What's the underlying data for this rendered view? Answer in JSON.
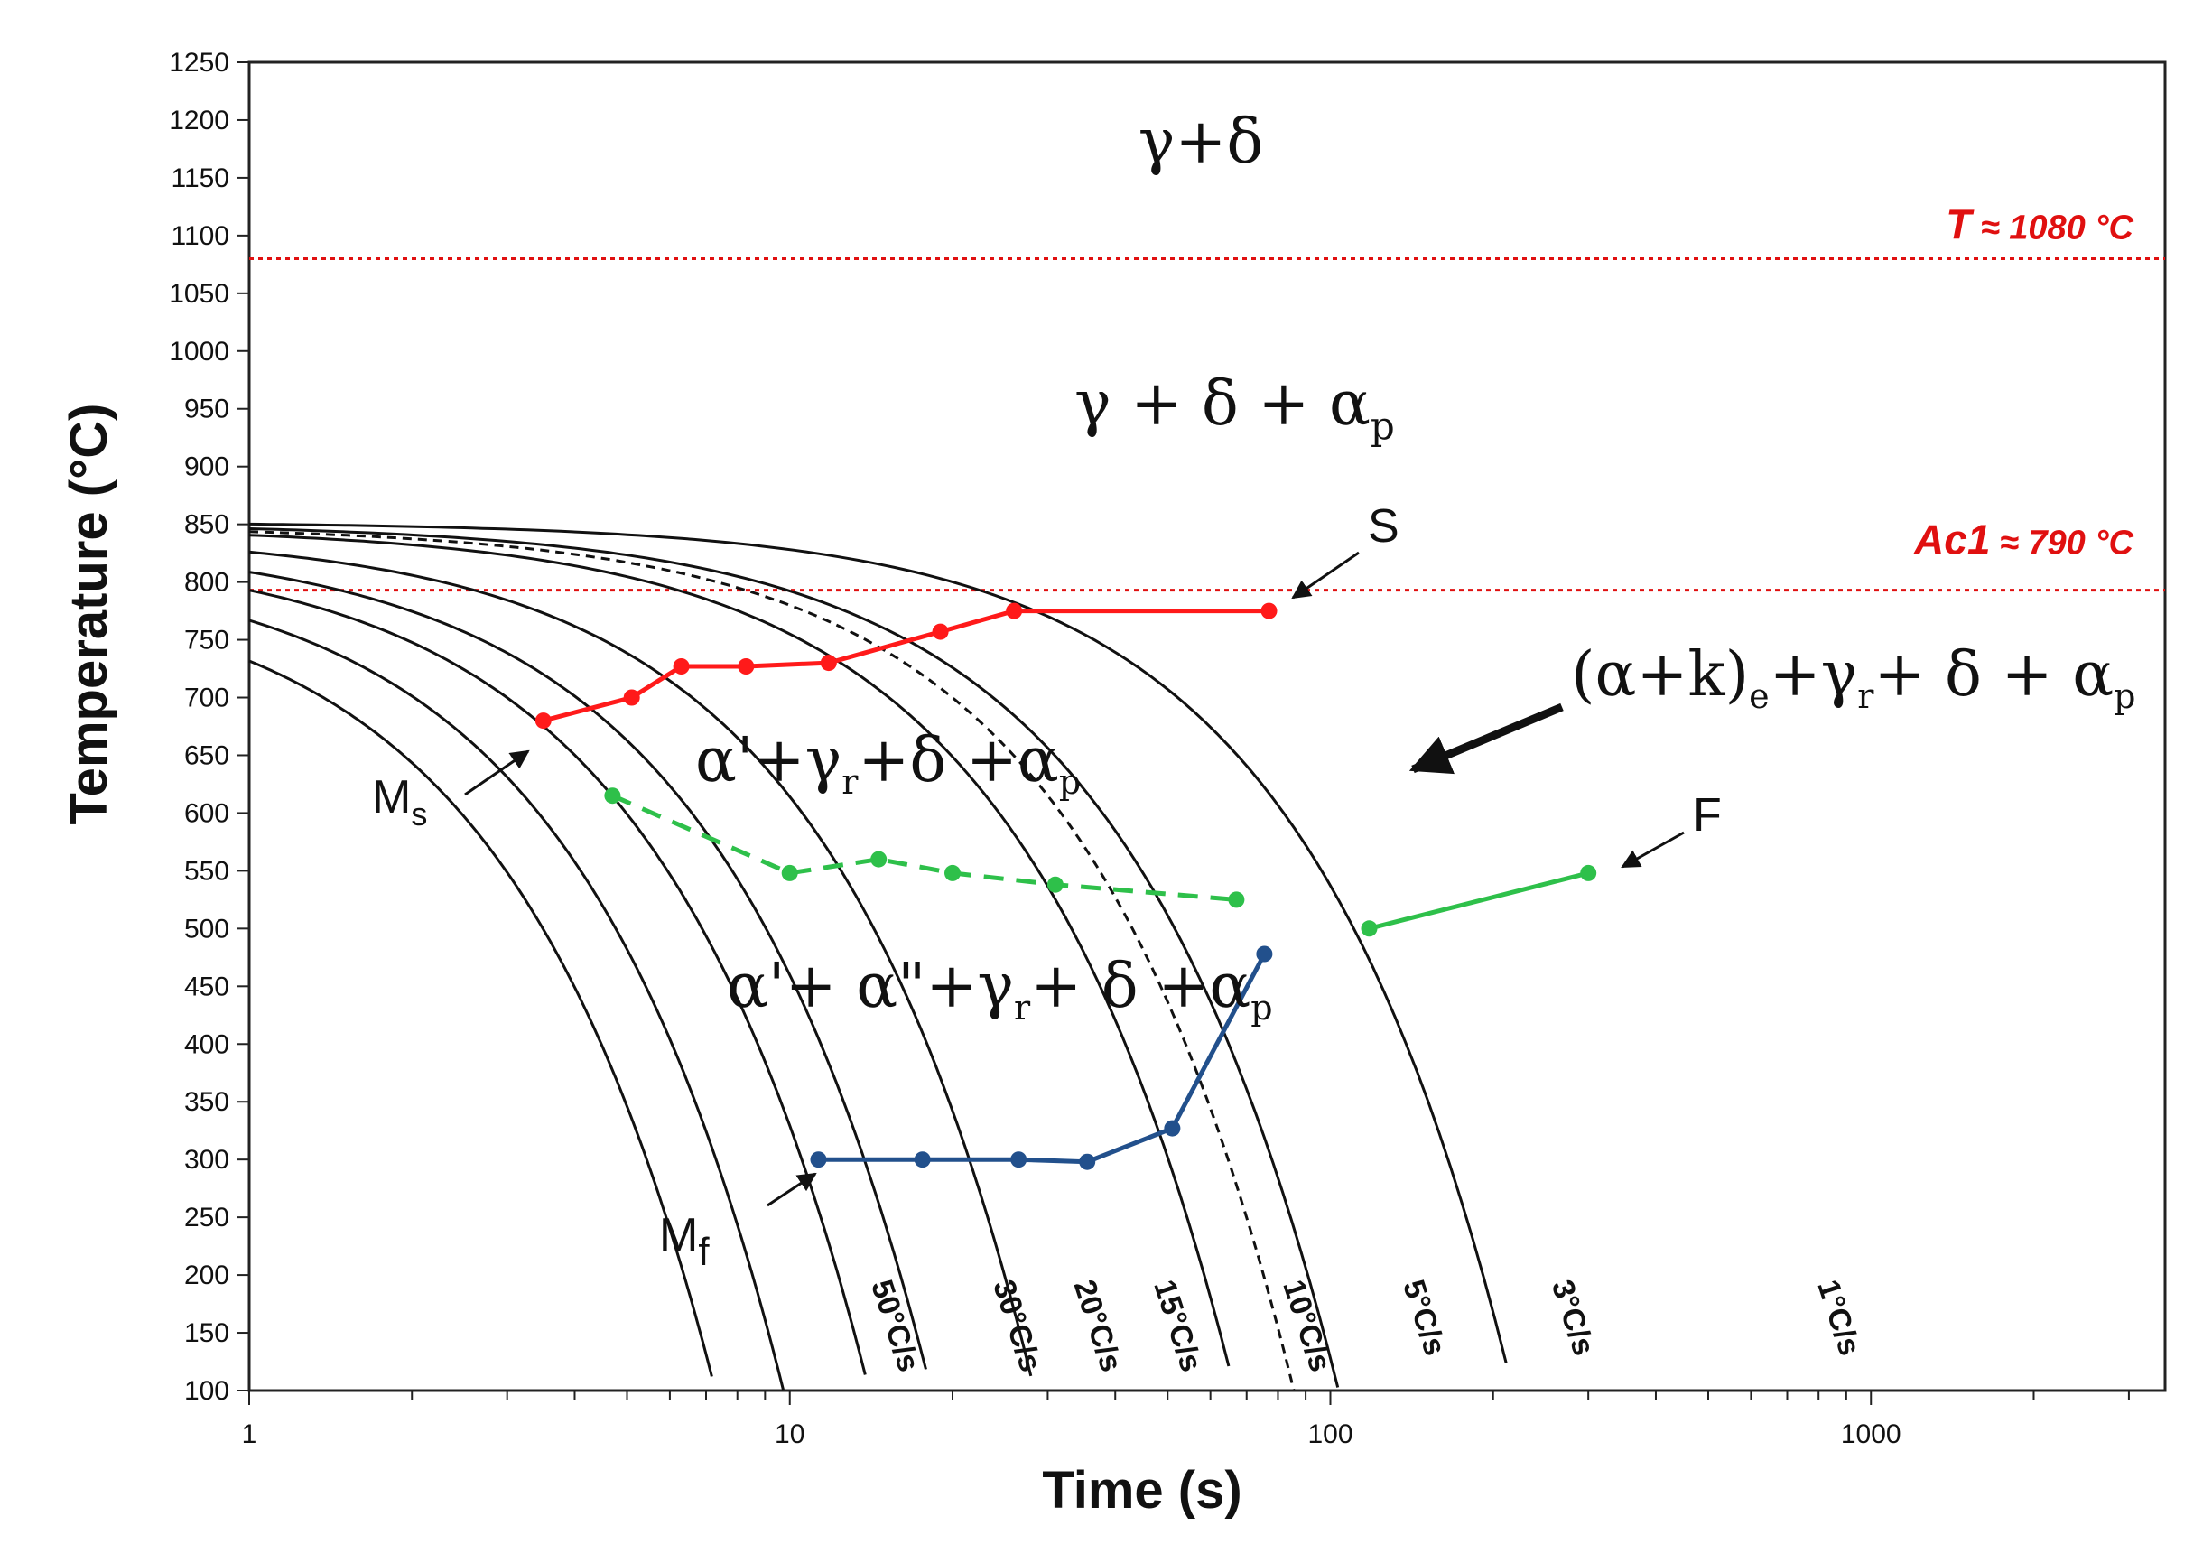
{
  "chart_data": {
    "type": "line",
    "title": "",
    "xlabel": "Time (s)",
    "ylabel": "Temperature (°C)",
    "x_scale": "log",
    "xlim": [
      1,
      3500
    ],
    "ylim": [
      100,
      1250
    ],
    "x_ticks": [
      "1",
      "10",
      "100",
      "1000"
    ],
    "y_ticks": [
      "100",
      "150",
      "200",
      "250",
      "300",
      "350",
      "400",
      "450",
      "500",
      "550",
      "600",
      "650",
      "700",
      "750",
      "800",
      "850",
      "900",
      "950",
      "1000",
      "1050",
      "1100",
      "1150",
      "1200",
      "1250"
    ],
    "reference_lines": [
      {
        "name": "T",
        "label_main": "T",
        "label_rest": " ≈ 1080 °C",
        "value": 1080,
        "color": "#e01010"
      },
      {
        "name": "Ac1",
        "label_main": "Ac1",
        "label_rest": "  ≈ 790 °C",
        "value": 793,
        "color": "#e01010"
      }
    ],
    "cooling_curves": [
      {
        "name": "50°C/s",
        "label": "50°C/s",
        "t0": 1,
        "T0": 805,
        "q": 1.31,
        "k": 1.14,
        "t_end": 13.5,
        "dashed": false
      },
      {
        "name": "30°C/s",
        "label": "30°C/s",
        "t0": 1,
        "T0": 822,
        "q": 1.74,
        "k": 1.13,
        "t_end": 22.7,
        "dashed": false
      },
      {
        "name": "20°C/s",
        "label": "20°C/s",
        "t0": 1,
        "T0": 832,
        "q": 2.46,
        "k": 1.11,
        "t_end": 32,
        "dashed": false
      },
      {
        "name": "15°C/s",
        "label": "15°C/s",
        "t0": 1,
        "T0": 838,
        "q": 3.27,
        "k": 1.11,
        "t_end": 45,
        "dashed": false
      },
      {
        "name": "10°C/s",
        "label": "10°C/s",
        "t0": 1,
        "T0": 843,
        "q": 5.66,
        "k": 1.13,
        "t_end": 78,
        "dashed": false
      },
      {
        "name": "5°C/s",
        "label": "5°C/s",
        "t0": 1,
        "T0": 848,
        "q": 13.0,
        "k": 1.1,
        "t_end": 130,
        "dashed": false
      },
      {
        "name": "4°C/s",
        "label": "",
        "t0": 1,
        "T0": 849,
        "q": 17.9,
        "k": 1.11,
        "t_end": 205,
        "dashed": true
      },
      {
        "name": "3°C/s",
        "label": "3°C/s",
        "t0": 1,
        "T0": 851,
        "q": 20.1,
        "k": 1.09,
        "t_end": 245,
        "dashed": false
      },
      {
        "name": "1°C/s",
        "label": "1°C/s",
        "t0": 1,
        "T0": 852,
        "q": 53.0,
        "k": 1.12,
        "t_end": 760,
        "dashed": false
      }
    ],
    "series": [
      {
        "name": "Ms",
        "color": "#ff1a1a",
        "style": "solid",
        "x": [
          3.5,
          5.1,
          6.3,
          8.3,
          11.8,
          19,
          26,
          77
        ],
        "y": [
          680,
          700,
          727,
          727,
          730,
          757,
          775,
          775
        ]
      },
      {
        "name": "F-dashed",
        "color": "#2ec04a",
        "style": "dashed",
        "x": [
          4.7,
          10,
          14.6,
          20,
          31,
          67
        ],
        "y": [
          615,
          548,
          560,
          548,
          538,
          525
        ]
      },
      {
        "name": "F",
        "color": "#2ec04a",
        "style": "solid",
        "x": [
          118,
          300
        ],
        "y": [
          500,
          548
        ]
      },
      {
        "name": "Mf",
        "color": "#22508c",
        "style": "solid",
        "x": [
          11.3,
          17.6,
          26.5,
          35.5,
          51,
          75.5
        ],
        "y": [
          300,
          300,
          300,
          298,
          327,
          478
        ]
      }
    ],
    "annotations": [
      {
        "name": "S",
        "text": "S"
      },
      {
        "name": "F",
        "text": "F"
      },
      {
        "name": "Ms",
        "main": "M",
        "sub": "s"
      },
      {
        "name": "Mf",
        "main": "M",
        "sub": "f"
      }
    ],
    "phase_regions": {
      "r1": "γ+δ",
      "r2": {
        "a": "γ + δ + α",
        "sub": "p"
      },
      "r3": {
        "a": "(α+k)",
        "s1": "e",
        "b": "+γ",
        "s2": "r",
        "c": "+ δ + α",
        "s3": "p"
      },
      "r4": {
        "a": "α'+γ",
        "s1": "r",
        "b": "+δ +α",
        "s2": "p"
      },
      "r5": {
        "a": "α'+ α\"+γ",
        "s1": "r",
        "b": "+ δ +α",
        "s2": "p"
      }
    }
  }
}
